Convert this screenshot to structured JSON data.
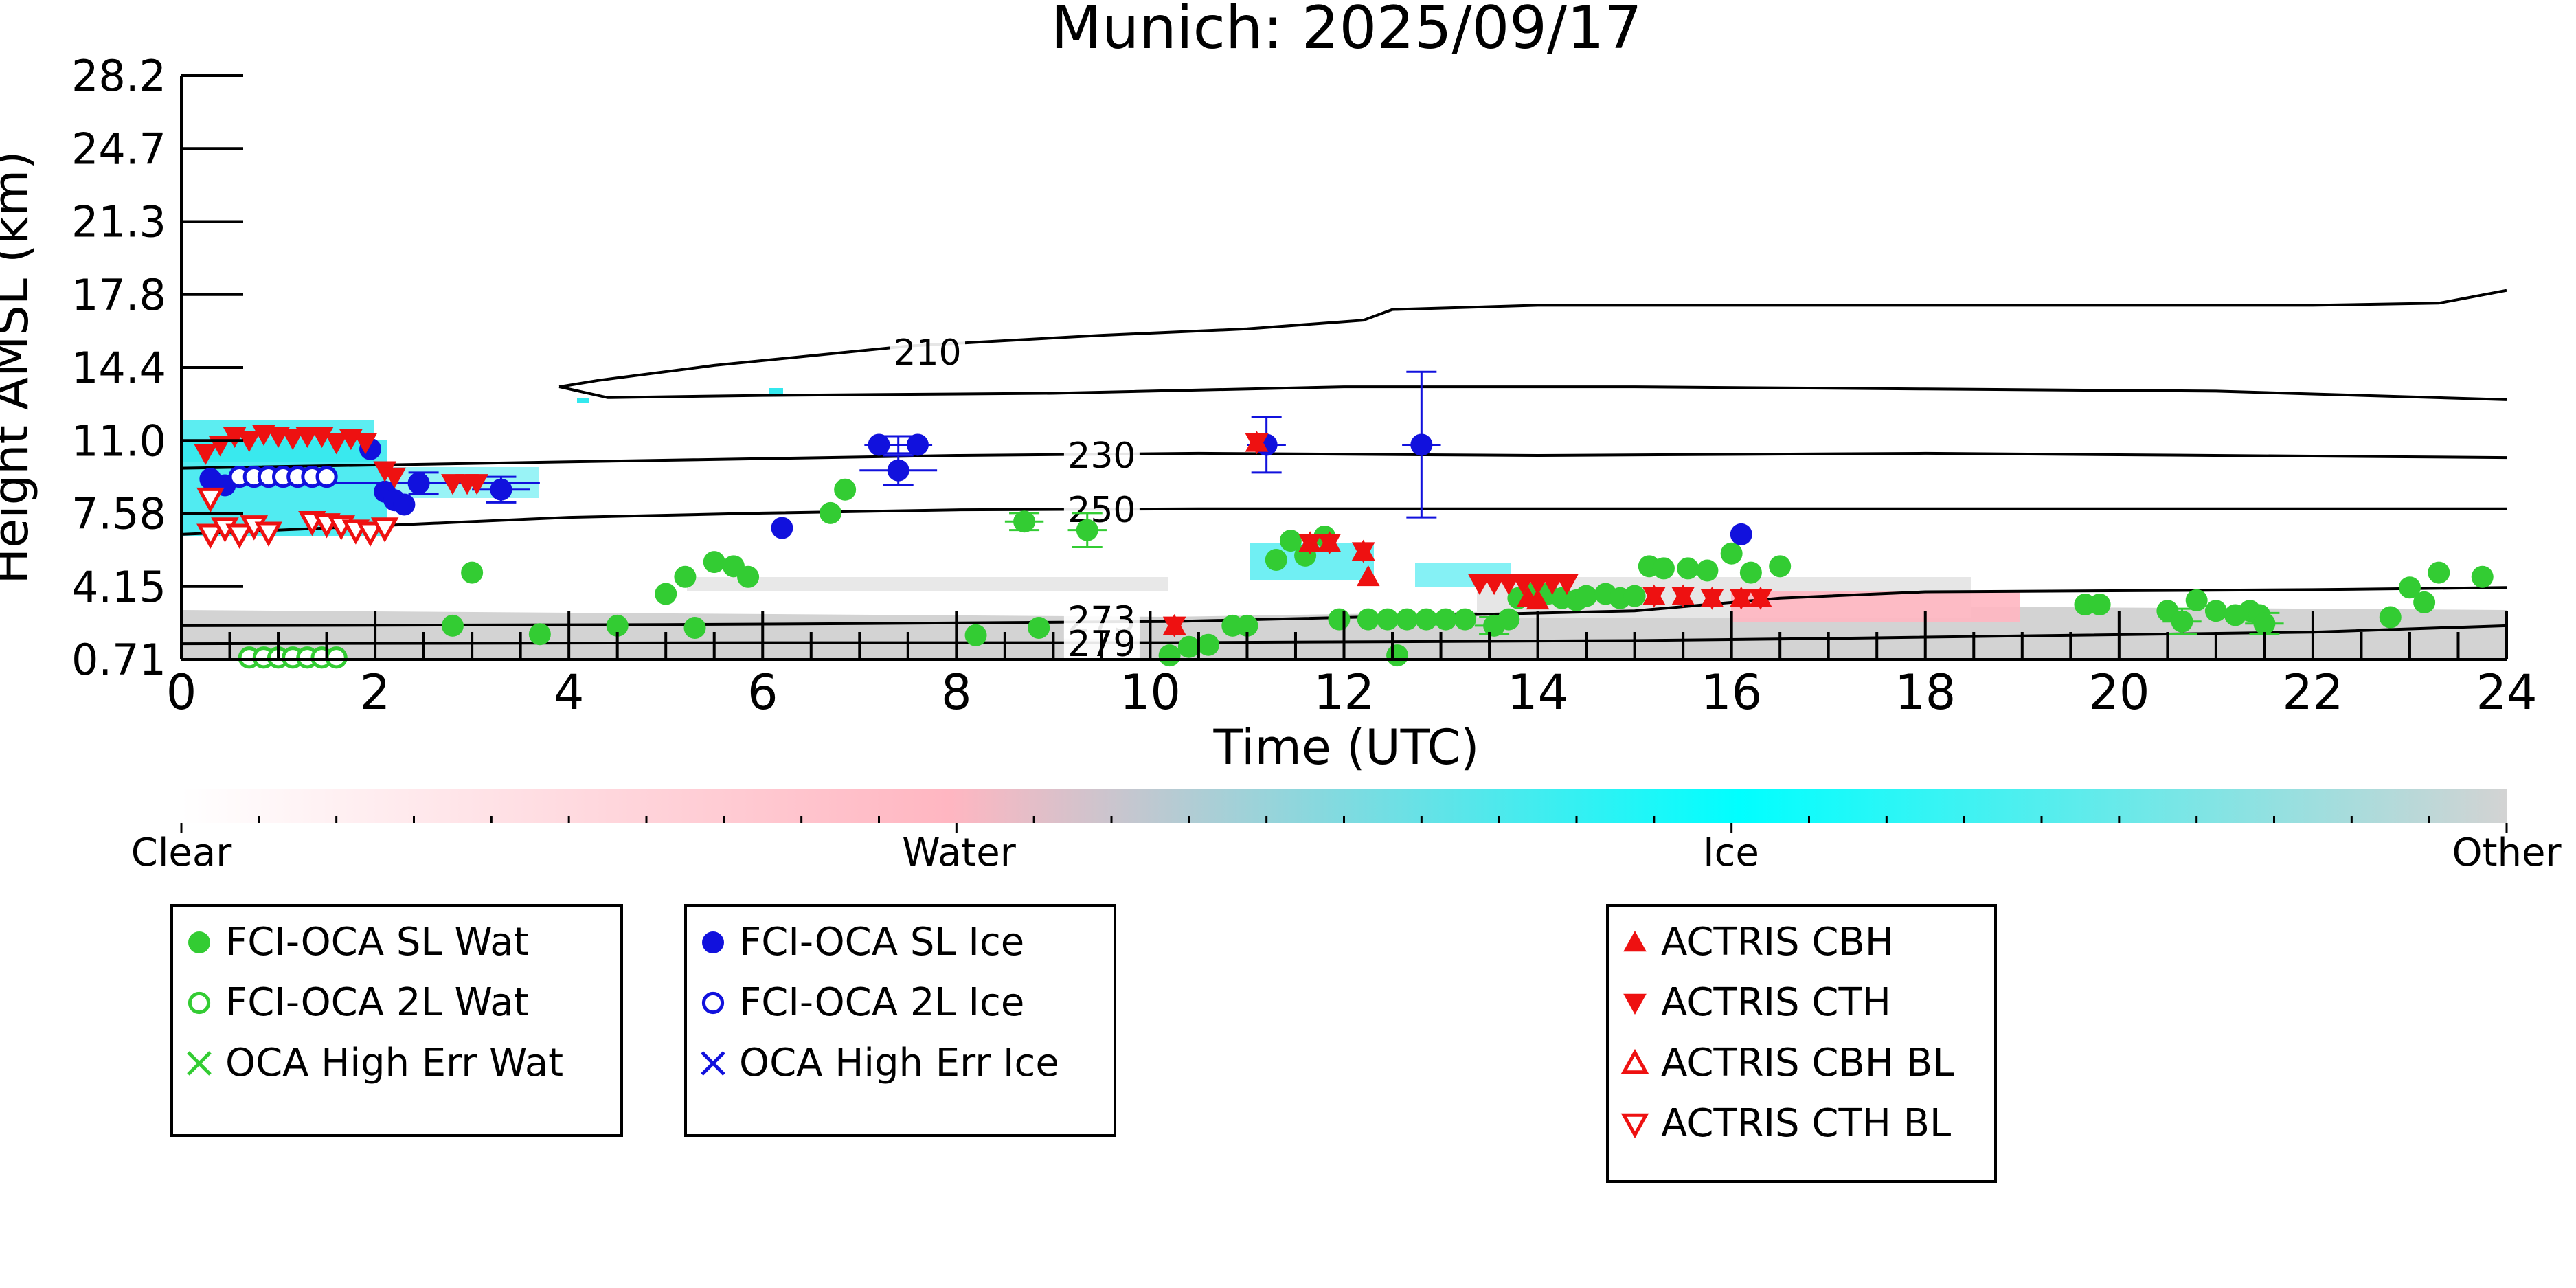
{
  "chart_data": {
    "type": "scatter",
    "title": "Munich: 2025/09/17",
    "xlabel": "Time (UTC)",
    "ylabel": "Height AMSL (km)",
    "xlim": [
      0,
      24
    ],
    "x_ticks": [
      "0",
      "2",
      "4",
      "6",
      "8",
      "10",
      "12",
      "14",
      "16",
      "18",
      "20",
      "22",
      "24"
    ],
    "y_ticks": [
      "0.71",
      "4.15",
      "7.58",
      "11.0",
      "14.4",
      "17.8",
      "21.3",
      "24.7",
      "28.2"
    ],
    "y_tick_values": [
      0.71,
      4.15,
      7.58,
      11.0,
      14.4,
      17.8,
      21.3,
      24.7,
      28.2
    ],
    "ylim": [
      0.71,
      28.2
    ],
    "grid": false,
    "contours": [
      {
        "label": "210",
        "points": [
          [
            3.9,
            13.5
          ],
          [
            4.3,
            13.8
          ],
          [
            5.5,
            14.5
          ],
          [
            7.5,
            15.4
          ],
          [
            9.5,
            15.9
          ],
          [
            11,
            16.2
          ],
          [
            12.2,
            16.6
          ],
          [
            12.5,
            17.1
          ],
          [
            14,
            17.3
          ],
          [
            18,
            17.3
          ],
          [
            22,
            17.3
          ],
          [
            23.3,
            17.4
          ],
          [
            24,
            18.0
          ]
        ],
        "label_at": [
          7.7,
          15.1
        ]
      },
      {
        "label": "",
        "points": [
          [
            3.9,
            13.5
          ],
          [
            4.4,
            13.0
          ],
          [
            6,
            13.1
          ],
          [
            9,
            13.2
          ],
          [
            12,
            13.5
          ],
          [
            15,
            13.5
          ],
          [
            18,
            13.4
          ],
          [
            21,
            13.3
          ],
          [
            24,
            12.9
          ]
        ]
      },
      {
        "label": "230",
        "points": [
          [
            0,
            9.7
          ],
          [
            4,
            10.0
          ],
          [
            8,
            10.3
          ],
          [
            10.5,
            10.4
          ],
          [
            14,
            10.3
          ],
          [
            18,
            10.4
          ],
          [
            24,
            10.2
          ]
        ],
        "label_at": [
          9.5,
          10.3
        ]
      },
      {
        "label": "250",
        "points": [
          [
            0,
            6.6
          ],
          [
            2,
            7.0
          ],
          [
            4,
            7.4
          ],
          [
            6,
            7.6
          ],
          [
            8,
            7.75
          ],
          [
            10.5,
            7.8
          ],
          [
            14,
            7.8
          ],
          [
            18,
            7.8
          ],
          [
            24,
            7.8
          ]
        ],
        "label_at": [
          9.5,
          7.75
        ]
      },
      {
        "label": "273",
        "points": [
          [
            0,
            2.3
          ],
          [
            5,
            2.35
          ],
          [
            7,
            2.4
          ],
          [
            10.2,
            2.5
          ],
          [
            15,
            3.0
          ],
          [
            16.5,
            3.6
          ],
          [
            18,
            3.9
          ],
          [
            22,
            4.0
          ],
          [
            24,
            4.1
          ]
        ],
        "label_at": [
          9.5,
          2.6
        ]
      },
      {
        "label": "279",
        "points": [
          [
            0,
            1.45
          ],
          [
            6,
            1.5
          ],
          [
            10.2,
            1.5
          ],
          [
            15,
            1.6
          ],
          [
            17,
            1.7
          ],
          [
            22,
            2.0
          ],
          [
            24,
            2.3
          ]
        ],
        "label_at": [
          9.5,
          1.45
        ]
      }
    ],
    "colorbar": {
      "labels": [
        "Clear",
        "Water",
        "Ice",
        "Other"
      ],
      "colors": [
        "#ffffff",
        "#ffb6c1",
        "#00ffff",
        "#d3d3d3"
      ]
    },
    "series": [
      {
        "name": "FCI-OCA SL Wat",
        "marker": "filled-circle",
        "color": "#33cc33",
        "points": [
          [
            2.8,
            2.3
          ],
          [
            3.0,
            4.8
          ],
          [
            3.7,
            1.9
          ],
          [
            4.5,
            2.3
          ],
          [
            5.0,
            3.8
          ],
          [
            5.2,
            4.6
          ],
          [
            5.3,
            2.2
          ],
          [
            5.5,
            5.3
          ],
          [
            5.7,
            5.1
          ],
          [
            5.85,
            4.6
          ],
          [
            6.7,
            7.6
          ],
          [
            6.85,
            8.7
          ],
          [
            8.2,
            1.85
          ],
          [
            8.7,
            7.2
          ],
          [
            8.85,
            2.2
          ],
          [
            9.35,
            6.8
          ],
          [
            10.2,
            0.9
          ],
          [
            10.4,
            1.3
          ],
          [
            10.6,
            1.4
          ],
          [
            10.85,
            2.3
          ],
          [
            11.0,
            2.3
          ],
          [
            11.3,
            5.4
          ],
          [
            11.45,
            6.3
          ],
          [
            11.6,
            5.6
          ],
          [
            11.8,
            6.5
          ],
          [
            11.95,
            2.6
          ],
          [
            12.25,
            2.6
          ],
          [
            12.45,
            2.6
          ],
          [
            12.65,
            2.6
          ],
          [
            12.85,
            2.6
          ],
          [
            13.05,
            2.6
          ],
          [
            12.55,
            0.9
          ],
          [
            13.25,
            2.6
          ],
          [
            13.55,
            2.3
          ],
          [
            13.7,
            2.6
          ],
          [
            13.8,
            3.6
          ],
          [
            13.95,
            3.8
          ],
          [
            14.1,
            3.8
          ],
          [
            14.25,
            3.6
          ],
          [
            14.4,
            3.5
          ],
          [
            14.5,
            3.7
          ],
          [
            14.7,
            3.8
          ],
          [
            14.85,
            3.6
          ],
          [
            15.0,
            3.7
          ],
          [
            15.15,
            5.1
          ],
          [
            15.3,
            5.0
          ],
          [
            15.55,
            5.0
          ],
          [
            15.75,
            4.9
          ],
          [
            16.0,
            5.7
          ],
          [
            16.2,
            4.8
          ],
          [
            16.5,
            5.1
          ],
          [
            19.65,
            3.3
          ],
          [
            19.8,
            3.3
          ],
          [
            20.5,
            3.0
          ],
          [
            20.65,
            2.5
          ],
          [
            20.8,
            3.5
          ],
          [
            21.0,
            3.0
          ],
          [
            21.2,
            2.8
          ],
          [
            21.35,
            3.0
          ],
          [
            21.45,
            2.8
          ],
          [
            21.5,
            2.4
          ],
          [
            22.8,
            2.7
          ],
          [
            23.0,
            4.1
          ],
          [
            23.15,
            3.4
          ],
          [
            23.3,
            4.8
          ],
          [
            23.75,
            4.6
          ]
        ]
      },
      {
        "name": "FCI-OCA 2L Wat",
        "marker": "open-circle",
        "color": "#33cc33",
        "points": [
          [
            0.7,
            0.8
          ],
          [
            0.85,
            0.8
          ],
          [
            1.0,
            0.8
          ],
          [
            1.15,
            0.8
          ],
          [
            1.3,
            0.8
          ],
          [
            1.45,
            0.8
          ],
          [
            1.6,
            0.8
          ]
        ]
      },
      {
        "name": "OCA High Err Wat",
        "marker": "x",
        "color": "#33cc33",
        "points": []
      },
      {
        "name": "FCI-OCA SL Ice",
        "marker": "filled-circle",
        "color": "#1111dd",
        "points": [
          [
            0.3,
            9.2
          ],
          [
            0.45,
            8.9
          ],
          [
            1.95,
            10.6
          ],
          [
            2.1,
            8.6
          ],
          [
            2.2,
            8.2
          ],
          [
            2.3,
            8.0
          ],
          [
            2.45,
            9.0
          ],
          [
            3.3,
            8.7
          ],
          [
            6.2,
            6.9
          ],
          [
            7.2,
            10.8
          ],
          [
            7.4,
            9.6
          ],
          [
            7.6,
            10.8
          ],
          [
            11.2,
            10.8
          ],
          [
            12.8,
            10.8
          ],
          [
            16.1,
            6.6
          ]
        ]
      },
      {
        "name": "FCI-OCA 2L Ice",
        "marker": "open-circle",
        "color": "#1111dd",
        "points": [
          [
            0.6,
            9.3
          ],
          [
            0.75,
            9.3
          ],
          [
            0.9,
            9.3
          ],
          [
            1.05,
            9.3
          ],
          [
            1.2,
            9.3
          ],
          [
            1.35,
            9.3
          ],
          [
            1.5,
            9.3
          ]
        ]
      },
      {
        "name": "OCA High Err Ice",
        "marker": "x",
        "color": "#1111dd",
        "points": []
      },
      {
        "name": "ACTRIS CBH",
        "marker": "triangle-up",
        "color": "#ee1111",
        "points": [
          [
            11.1,
            10.9
          ],
          [
            11.65,
            6.2
          ],
          [
            11.85,
            6.2
          ],
          [
            12.2,
            5.8
          ],
          [
            12.25,
            4.6
          ],
          [
            13.9,
            3.6
          ],
          [
            14.0,
            3.5
          ],
          [
            15.2,
            3.7
          ],
          [
            15.5,
            3.7
          ],
          [
            15.8,
            3.6
          ],
          [
            16.1,
            3.6
          ],
          [
            16.3,
            3.6
          ],
          [
            10.25,
            2.3
          ]
        ]
      },
      {
        "name": "ACTRIS CTH",
        "marker": "triangle-down",
        "color": "#ee1111",
        "points": [
          [
            0.25,
            10.4
          ],
          [
            0.4,
            10.8
          ],
          [
            0.55,
            11.2
          ],
          [
            0.7,
            11.0
          ],
          [
            0.85,
            11.3
          ],
          [
            1.0,
            11.2
          ],
          [
            1.15,
            11.1
          ],
          [
            1.3,
            11.2
          ],
          [
            1.45,
            11.2
          ],
          [
            1.6,
            10.9
          ],
          [
            1.75,
            11.1
          ],
          [
            1.9,
            10.9
          ],
          [
            2.1,
            9.6
          ],
          [
            2.2,
            9.3
          ],
          [
            2.8,
            9.0
          ],
          [
            2.95,
            9.0
          ],
          [
            3.05,
            9.0
          ],
          [
            11.1,
            10.9
          ],
          [
            11.65,
            6.2
          ],
          [
            11.85,
            6.2
          ],
          [
            12.2,
            5.8
          ],
          [
            10.25,
            2.3
          ],
          [
            13.4,
            4.3
          ],
          [
            13.55,
            4.3
          ],
          [
            13.7,
            4.3
          ],
          [
            13.85,
            4.3
          ],
          [
            14.0,
            4.3
          ],
          [
            14.15,
            4.3
          ],
          [
            14.3,
            4.3
          ],
          [
            15.2,
            3.7
          ],
          [
            15.5,
            3.7
          ],
          [
            15.8,
            3.6
          ],
          [
            16.1,
            3.6
          ],
          [
            16.3,
            3.6
          ]
        ]
      },
      {
        "name": "ACTRIS CBH BL",
        "marker": "open-triangle-up",
        "color": "#ee1111",
        "points": []
      },
      {
        "name": "ACTRIS CTH BL",
        "marker": "open-triangle-down",
        "color": "#ee1111",
        "points": [
          [
            0.3,
            6.6
          ],
          [
            0.45,
            6.9
          ],
          [
            0.6,
            6.6
          ],
          [
            0.75,
            7.0
          ],
          [
            0.9,
            6.7
          ],
          [
            1.35,
            7.2
          ],
          [
            1.5,
            7.1
          ],
          [
            1.65,
            7.0
          ],
          [
            1.8,
            6.8
          ],
          [
            1.95,
            6.7
          ],
          [
            2.1,
            6.9
          ],
          [
            0.3,
            8.3
          ]
        ]
      }
    ],
    "errorbars": [
      {
        "color": "#1111dd",
        "items": [
          [
            2.5,
            9.0,
            1.2,
            0.5
          ],
          [
            7.4,
            9.6,
            0.4,
            0.7
          ],
          [
            11.2,
            10.8,
            0.2,
            1.3
          ],
          [
            12.8,
            10.8,
            0.2,
            3.4
          ],
          [
            7.4,
            10.8,
            0.35,
            0.4
          ],
          [
            3.3,
            8.7,
            0.3,
            0.6
          ]
        ]
      },
      {
        "color": "#33cc33",
        "items": [
          [
            9.35,
            6.8,
            0.2,
            0.8
          ],
          [
            8.7,
            7.2,
            0.2,
            0.4
          ],
          [
            21.5,
            2.4,
            0.2,
            0.5
          ],
          [
            20.65,
            2.5,
            0.2,
            0.6
          ],
          [
            13.55,
            2.3,
            0.2,
            0.4
          ]
        ]
      }
    ],
    "legends": [
      {
        "items": [
          {
            "marker": "filled-circle",
            "color": "#33cc33",
            "label": "FCI-OCA SL Wat"
          },
          {
            "marker": "open-circle",
            "color": "#33cc33",
            "label": "FCI-OCA 2L Wat"
          },
          {
            "marker": "x",
            "color": "#33cc33",
            "label": "OCA High Err Wat"
          }
        ]
      },
      {
        "items": [
          {
            "marker": "filled-circle",
            "color": "#1111dd",
            "label": "FCI-OCA SL Ice"
          },
          {
            "marker": "open-circle",
            "color": "#1111dd",
            "label": "FCI-OCA 2L Ice"
          },
          {
            "marker": "x",
            "color": "#1111dd",
            "label": "OCA High Err Ice"
          }
        ]
      },
      {
        "items": [
          {
            "marker": "triangle-up",
            "color": "#ee1111",
            "label": "ACTRIS CBH"
          },
          {
            "marker": "triangle-down",
            "color": "#ee1111",
            "label": "ACTRIS CTH"
          },
          {
            "marker": "open-triangle-up",
            "color": "#ee1111",
            "label": "ACTRIS CBH BL"
          },
          {
            "marker": "open-triangle-down",
            "color": "#ee1111",
            "label": "ACTRIS CTH BL"
          }
        ]
      }
    ]
  }
}
